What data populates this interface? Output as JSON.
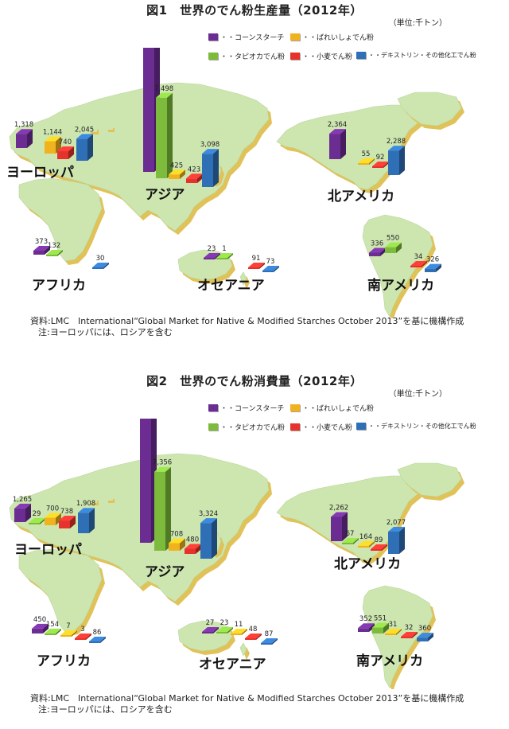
{
  "colors": {
    "corn": "#6b2d91",
    "potato": "#f0b21e",
    "tapioca": "#7dbb3c",
    "wheat": "#e5322d",
    "other": "#2f6fb5",
    "land": "#cde6b0",
    "land_edge": "#e1c259"
  },
  "figures": [
    {
      "title": "図1　世界のでん粉生産量（2012年）",
      "unit": "（単位:千トン）",
      "legend": [
        "・・コーンスターチ",
        "・・ばれいしょでん粉",
        "・・タピオカでん粉",
        "・・小麦でん粉",
        "・・デキストリン・その他化工でん粉"
      ],
      "source": "資料:LMC　International“Global Market for Native & Modified Starches October 2013”を基に機構作成",
      "note": "注:ヨーロッパには、ロシアを含む"
    },
    {
      "title": "図2　世界のでん粉消費量（2012年）",
      "unit": "（単位:千トン）",
      "legend": [
        "・・コーンスターチ",
        "・・ばれいしょでん粉",
        "・・タピオカでん粉",
        "・・小麦でん粉",
        "・・デキストリン・その他化工でん粉"
      ],
      "source": "資料:LMC　International“Global Market for Native & Modified Starches October 2013”を基に機構作成",
      "note": "注:ヨーロッパには、ロシアを含む"
    }
  ],
  "chart_data": [
    {
      "type": "bar",
      "title": "図1　世界のでん粉生産量（2012年）",
      "unit": "千トン",
      "series_keys": [
        "corn",
        "potato",
        "tapioca",
        "wheat",
        "other"
      ],
      "regions": [
        {
          "name": "ヨーロッパ",
          "values": {
            "corn": 1318,
            "potato": 1144,
            "wheat": 740,
            "other": 2045
          }
        },
        {
          "name": "アジア",
          "values": {
            "corn": 11674,
            "tapioca": 7498,
            "potato": 425,
            "wheat": 423,
            "other": 3098
          }
        },
        {
          "name": "北アメリカ",
          "values": {
            "corn": 2364,
            "potato": 55,
            "wheat": 92,
            "other": 2288
          }
        },
        {
          "name": "アフリカ",
          "values": {
            "corn": 373,
            "tapioca": 132,
            "other": 30
          }
        },
        {
          "name": "オセアニア",
          "values": {
            "corn": 23,
            "tapioca": 1,
            "wheat": 91,
            "other": 73
          }
        },
        {
          "name": "南アメリカ",
          "values": {
            "corn": 336,
            "tapioca": 550,
            "wheat": 34,
            "other": 326
          }
        }
      ]
    },
    {
      "type": "bar",
      "title": "図2　世界のでん粉消費量（2012年）",
      "unit": "千トン",
      "series_keys": [
        "corn",
        "potato",
        "tapioca",
        "wheat",
        "other"
      ],
      "regions": [
        {
          "name": "ヨーロッパ",
          "values": {
            "corn": 1265,
            "tapioca": 29,
            "potato": 700,
            "wheat": 738,
            "other": 1908
          }
        },
        {
          "name": "アジア",
          "values": {
            "corn": 11659,
            "tapioca": 7356,
            "potato": 708,
            "wheat": 480,
            "other": 3324
          }
        },
        {
          "name": "北アメリカ",
          "values": {
            "corn": 2262,
            "tapioca": 67,
            "potato": 164,
            "wheat": 89,
            "other": 2077
          }
        },
        {
          "name": "アフリカ",
          "values": {
            "corn": 450,
            "tapioca": 154,
            "potato": 7,
            "wheat": 3,
            "other": 86
          }
        },
        {
          "name": "オセアニア",
          "values": {
            "corn": 27,
            "tapioca": 23,
            "potato": 11,
            "wheat": 48,
            "other": 87
          }
        },
        {
          "name": "南アメリカ",
          "values": {
            "corn": 352,
            "tapioca": 551,
            "potato": 31,
            "wheat": 32,
            "other": 360
          }
        }
      ]
    }
  ]
}
